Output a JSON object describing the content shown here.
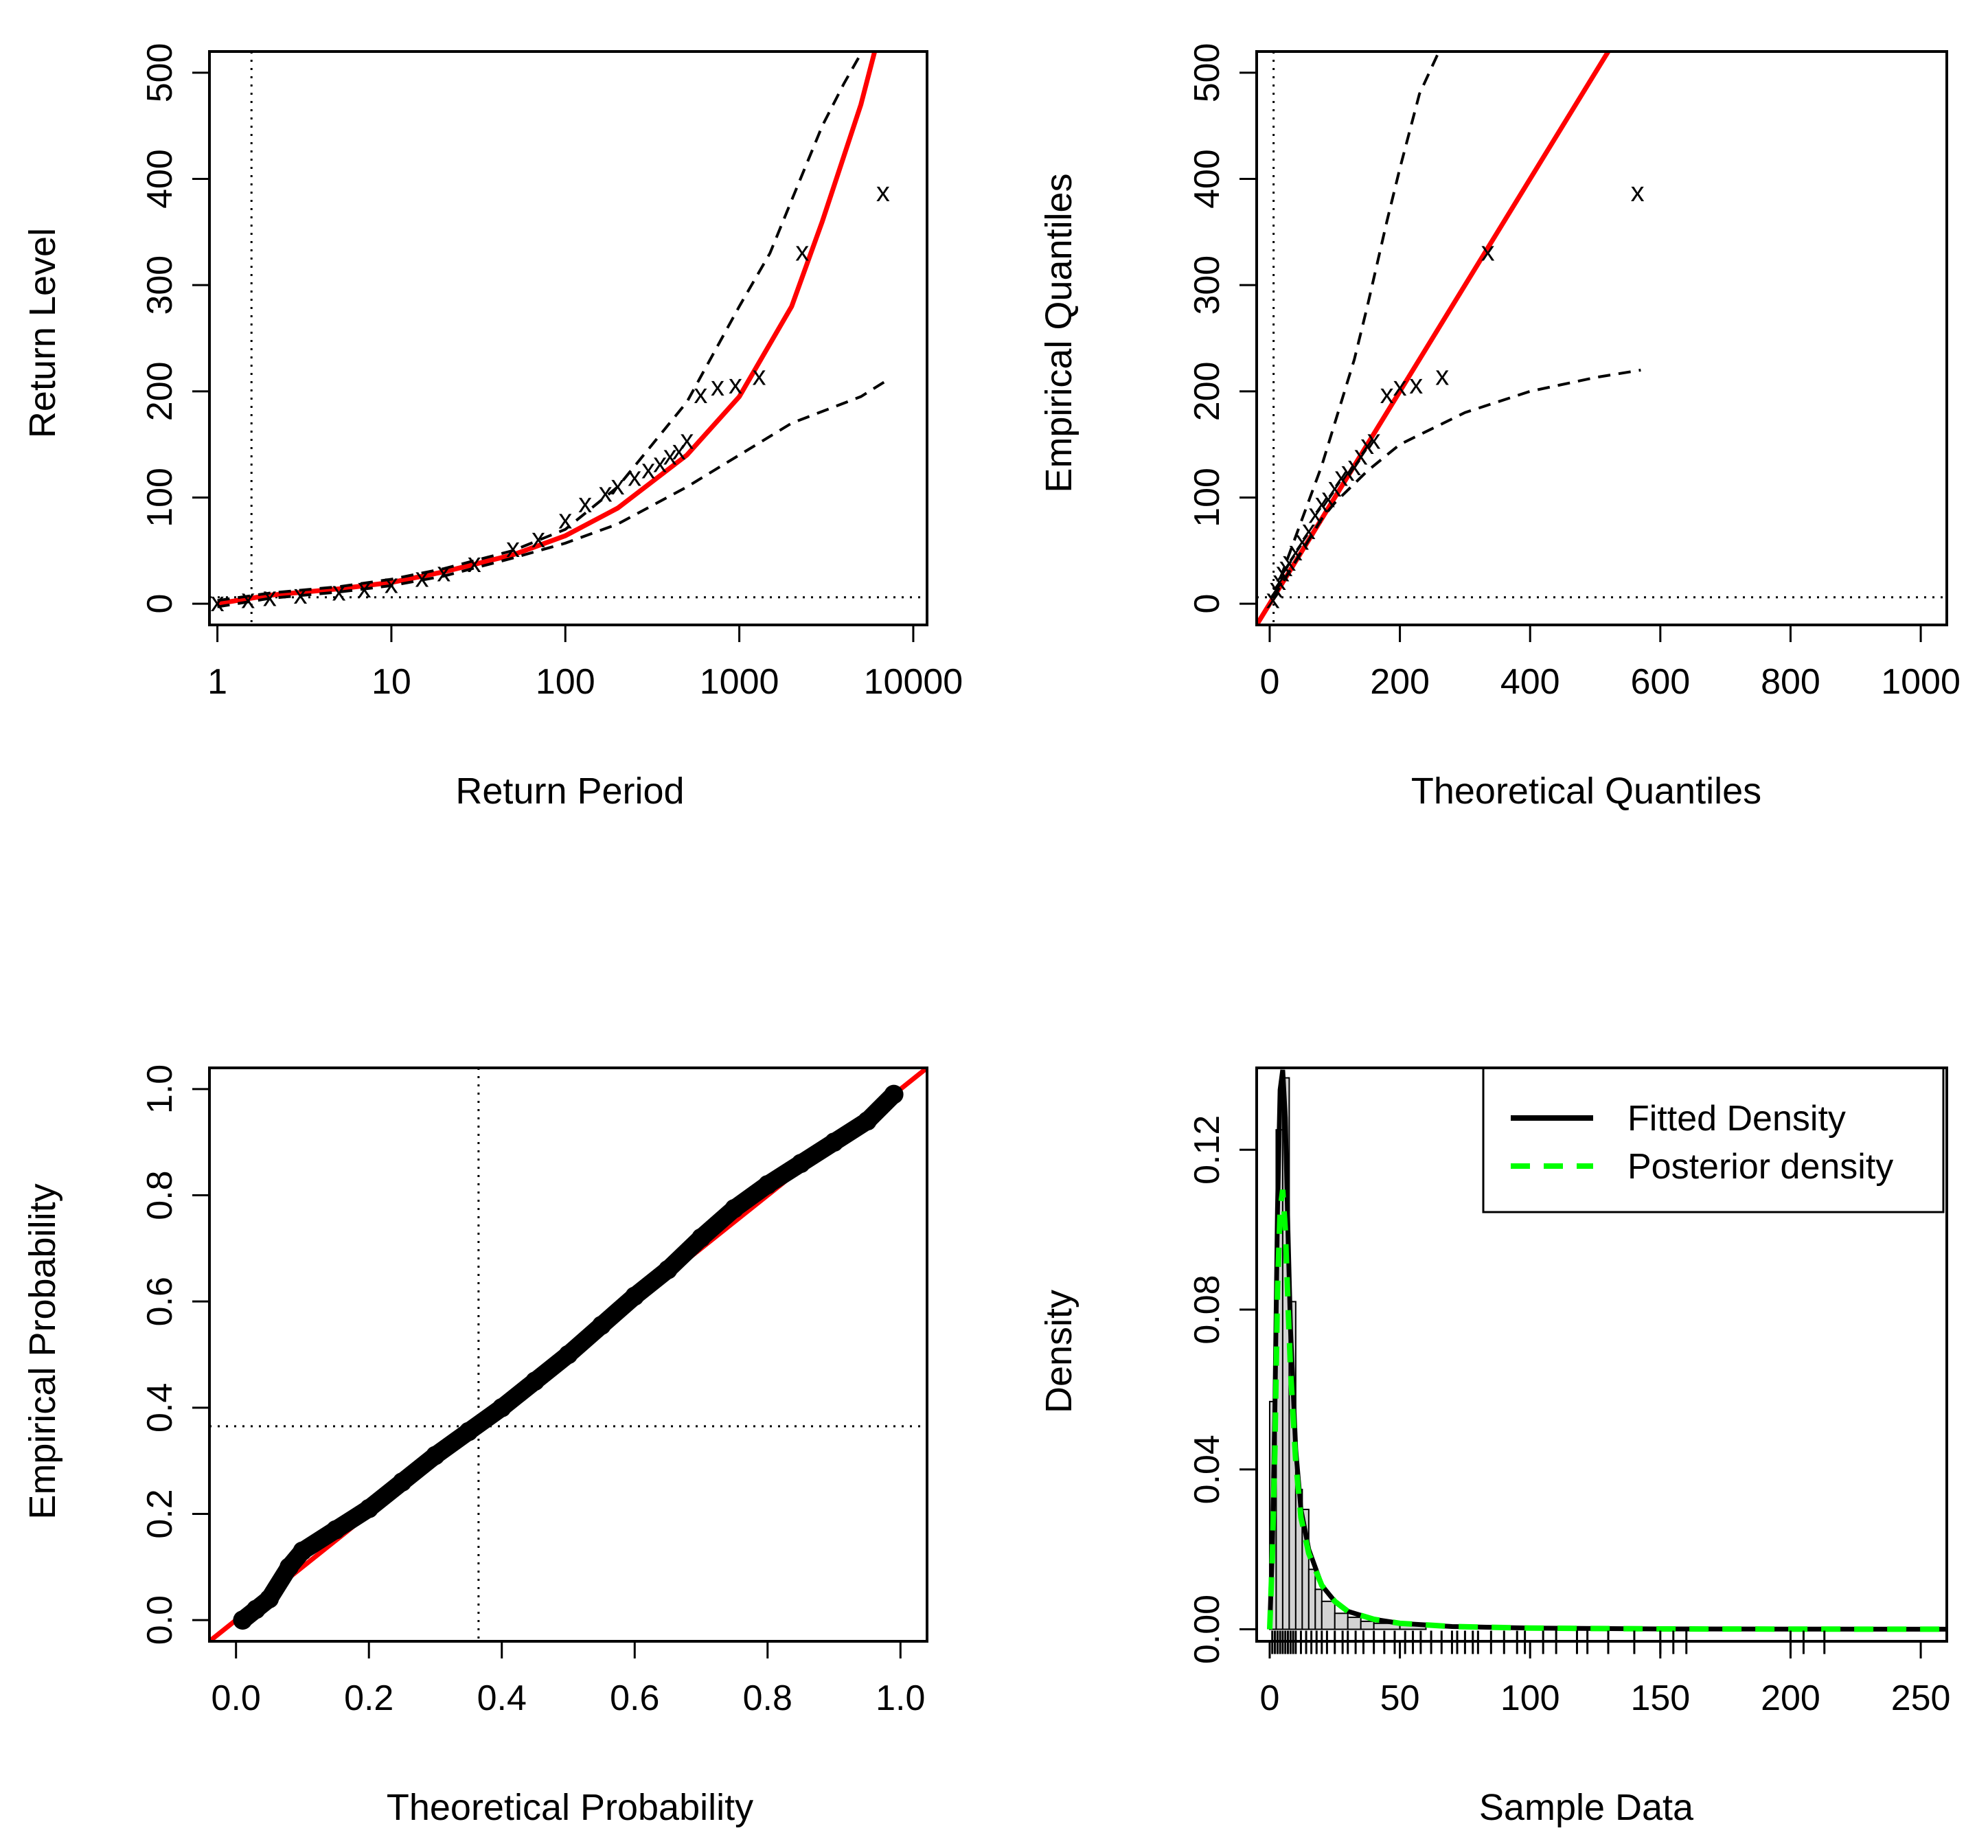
{
  "colors": {
    "fit": "#ff0000",
    "ci": "#000000",
    "points": "#000000",
    "hist_fill": "#d3d3d3",
    "posterior": "#00ff00"
  },
  "chart_data": [
    {
      "id": "return_level",
      "type": "line",
      "xscale": "log10",
      "xlabel": "Return Period",
      "ylabel": "Return Level",
      "xlim": [
        0.9,
        12000
      ],
      "ylim": [
        -20,
        520
      ],
      "xticks": [
        1,
        10,
        100,
        1000,
        10000
      ],
      "xtick_labels": [
        "1",
        "10",
        "100",
        "1000",
        "10000"
      ],
      "yticks": [
        0,
        100,
        200,
        300,
        400,
        500
      ],
      "ytick_labels": [
        "0",
        "100",
        "200",
        "300",
        "400",
        "500"
      ],
      "vline": 1.57,
      "hline": 6,
      "series": [
        {
          "name": "Fitted return level",
          "style": "red-solid",
          "x": [
            1,
            2,
            5,
            10,
            20,
            50,
            100,
            200,
            500,
            1000,
            2000,
            3000,
            5000,
            6000
          ],
          "y": [
            0,
            8,
            14,
            20,
            30,
            46,
            64,
            90,
            140,
            195,
            280,
            360,
            470,
            520
          ]
        },
        {
          "name": "Upper CI",
          "style": "black-dashed",
          "x": [
            1,
            2,
            5,
            10,
            20,
            50,
            100,
            200,
            500,
            1000,
            1500,
            2000,
            3000,
            4000,
            5000
          ],
          "y": [
            3,
            10,
            16,
            23,
            33,
            50,
            70,
            110,
            190,
            280,
            330,
            380,
            450,
            490,
            518
          ]
        },
        {
          "name": "Lower CI",
          "style": "black-dashed",
          "x": [
            1,
            2,
            5,
            10,
            20,
            50,
            100,
            200,
            500,
            1000,
            2000,
            5000,
            7000
          ],
          "y": [
            -3,
            5,
            11,
            17,
            26,
            43,
            57,
            75,
            110,
            140,
            170,
            195,
            210
          ]
        },
        {
          "name": "Empirical return levels",
          "style": "points-x",
          "x": [
            1,
            1.5,
            2,
            3,
            5,
            7,
            10,
            15,
            20,
            30,
            50,
            70,
            100,
            130,
            170,
            200,
            250,
            300,
            350,
            400,
            450,
            500,
            600,
            750,
            950,
            1300,
            2300,
            6700
          ],
          "y": [
            2,
            5,
            7,
            9,
            12,
            15,
            19,
            25,
            30,
            39,
            53,
            62,
            80,
            95,
            105,
            112,
            120,
            127,
            133,
            140,
            145,
            155,
            198,
            205,
            207,
            215,
            332,
            388
          ]
        }
      ]
    },
    {
      "id": "qq",
      "type": "scatter",
      "xlabel": "Theoretical Quantiles",
      "ylabel": "Empirical Quantiles",
      "xlim": [
        -20,
        1040
      ],
      "ylim": [
        -20,
        520
      ],
      "xticks": [
        0,
        200,
        400,
        600,
        800,
        1000
      ],
      "xtick_labels": [
        "0",
        "200",
        "400",
        "600",
        "800",
        "1000"
      ],
      "yticks": [
        0,
        100,
        200,
        300,
        400,
        500
      ],
      "ytick_labels": [
        "0",
        "100",
        "200",
        "300",
        "400",
        "500"
      ],
      "vline": 6,
      "hline": 6,
      "series": [
        {
          "name": "1:1 line",
          "style": "red-solid",
          "x": [
            -20,
            520
          ],
          "y": [
            -20,
            520
          ]
        },
        {
          "name": "Upper CI",
          "style": "black-dashed",
          "x": [
            5,
            20,
            50,
            80,
            100,
            130,
            150,
            180,
            200,
            230,
            260
          ],
          "y": [
            5,
            30,
            80,
            130,
            170,
            230,
            280,
            360,
            410,
            480,
            520
          ]
        },
        {
          "name": "Lower CI",
          "style": "black-dashed",
          "x": [
            5,
            20,
            50,
            80,
            100,
            150,
            200,
            300,
            400,
            500,
            570
          ],
          "y": [
            5,
            20,
            50,
            80,
            95,
            125,
            150,
            180,
            200,
            213,
            220
          ]
        },
        {
          "name": "Quantiles",
          "style": "points-x",
          "x": [
            5,
            10,
            15,
            20,
            25,
            30,
            40,
            50,
            60,
            70,
            80,
            90,
            100,
            110,
            120,
            130,
            140,
            150,
            160,
            180,
            200,
            225,
            265,
            335,
            565
          ],
          "y": [
            5,
            15,
            22,
            30,
            35,
            40,
            50,
            60,
            70,
            85,
            95,
            100,
            110,
            120,
            125,
            130,
            140,
            150,
            155,
            198,
            205,
            207,
            215,
            332,
            388
          ]
        }
      ]
    },
    {
      "id": "pp",
      "type": "scatter",
      "xlabel": "Theoretical Probability",
      "ylabel": "Empirical Probability",
      "xlim": [
        -0.04,
        1.04
      ],
      "ylim": [
        -0.04,
        1.04
      ],
      "xticks": [
        0,
        0.2,
        0.4,
        0.6,
        0.8,
        1
      ],
      "xtick_labels": [
        "0.0",
        "0.2",
        "0.4",
        "0.6",
        "0.8",
        "1.0"
      ],
      "yticks": [
        0,
        0.2,
        0.4,
        0.6,
        0.8,
        1
      ],
      "ytick_labels": [
        "0.0",
        "0.2",
        "0.4",
        "0.6",
        "0.8",
        "1.0"
      ],
      "vline": 0.365,
      "hline": 0.365,
      "series": [
        {
          "name": "1:1 line",
          "style": "red-solid",
          "x": [
            -0.04,
            1.04
          ],
          "y": [
            -0.04,
            1.04
          ]
        },
        {
          "name": "Probabilities",
          "style": "points-thick",
          "x": [
            0.01,
            0.03,
            0.05,
            0.08,
            0.1,
            0.15,
            0.2,
            0.25,
            0.3,
            0.35,
            0.4,
            0.45,
            0.5,
            0.55,
            0.6,
            0.65,
            0.7,
            0.75,
            0.8,
            0.85,
            0.9,
            0.95,
            0.99
          ],
          "y": [
            0,
            0.02,
            0.04,
            0.1,
            0.13,
            0.17,
            0.21,
            0.26,
            0.31,
            0.355,
            0.4,
            0.45,
            0.5,
            0.555,
            0.61,
            0.66,
            0.72,
            0.775,
            0.82,
            0.86,
            0.9,
            0.94,
            0.99
          ]
        }
      ]
    },
    {
      "id": "density",
      "type": "bar",
      "xlabel": "Sample Data",
      "ylabel": "Density",
      "xlim": [
        -5,
        260
      ],
      "ylim": [
        -0.003,
        0.1405
      ],
      "xticks": [
        0,
        50,
        100,
        150,
        200,
        250
      ],
      "xtick_labels": [
        "0",
        "50",
        "100",
        "150",
        "200",
        "250"
      ],
      "yticks": [
        0,
        0.04,
        0.08,
        0.12
      ],
      "ytick_labels": [
        "0.00",
        "0.04",
        "0.08",
        "0.12"
      ],
      "histogram": {
        "breaks": [
          0,
          2.5,
          5,
          7.5,
          10,
          12.5,
          15,
          17.5,
          20,
          25,
          30,
          35,
          40,
          50,
          60
        ],
        "density": [
          0.057,
          0.125,
          0.138,
          0.082,
          0.035,
          0.03,
          0.015,
          0.01,
          0.007,
          0.004,
          0.003,
          0.002,
          0.0015,
          0.001
        ]
      },
      "rug": [
        1,
        2,
        3,
        4,
        5,
        6,
        7,
        8,
        9,
        10,
        12,
        14,
        16,
        18,
        20,
        22,
        25,
        28,
        30,
        33,
        36,
        40,
        44,
        48,
        52,
        55,
        58,
        62,
        66,
        70,
        72,
        75,
        78,
        80,
        85,
        90,
        95,
        98,
        105,
        110,
        118,
        122,
        130,
        140,
        150,
        155,
        160,
        200,
        205,
        213
      ],
      "series": [
        {
          "name": "Fitted Density",
          "style": "black-solid",
          "x": [
            0,
            1,
            2,
            3,
            4,
            5,
            6,
            7,
            8,
            10,
            12,
            15,
            20,
            25,
            30,
            40,
            50,
            70,
            100,
            150,
            200,
            260
          ],
          "y": [
            0,
            0.02,
            0.055,
            0.105,
            0.135,
            0.14,
            0.128,
            0.1,
            0.075,
            0.045,
            0.03,
            0.02,
            0.011,
            0.007,
            0.0045,
            0.0025,
            0.0015,
            0.0007,
            0.0003,
            0.0001,
            5e-05,
            2e-05
          ]
        },
        {
          "name": "Posterior density",
          "style": "green-dashed",
          "x": [
            0,
            1,
            2,
            3,
            4,
            5,
            6,
            7,
            8,
            10,
            12,
            15,
            20,
            25,
            30,
            40,
            50,
            70,
            100,
            150,
            200,
            260
          ],
          "y": [
            0,
            0.018,
            0.045,
            0.085,
            0.105,
            0.11,
            0.1,
            0.082,
            0.065,
            0.042,
            0.028,
            0.019,
            0.011,
            0.007,
            0.0045,
            0.0025,
            0.0015,
            0.0007,
            0.0003,
            0.0001,
            5e-05,
            2e-05
          ]
        }
      ],
      "legend": {
        "position": "top-right",
        "entries": [
          {
            "label": "Fitted Density",
            "style": "black-solid"
          },
          {
            "label": "Posterior density",
            "style": "green-dashed"
          }
        ]
      }
    }
  ]
}
